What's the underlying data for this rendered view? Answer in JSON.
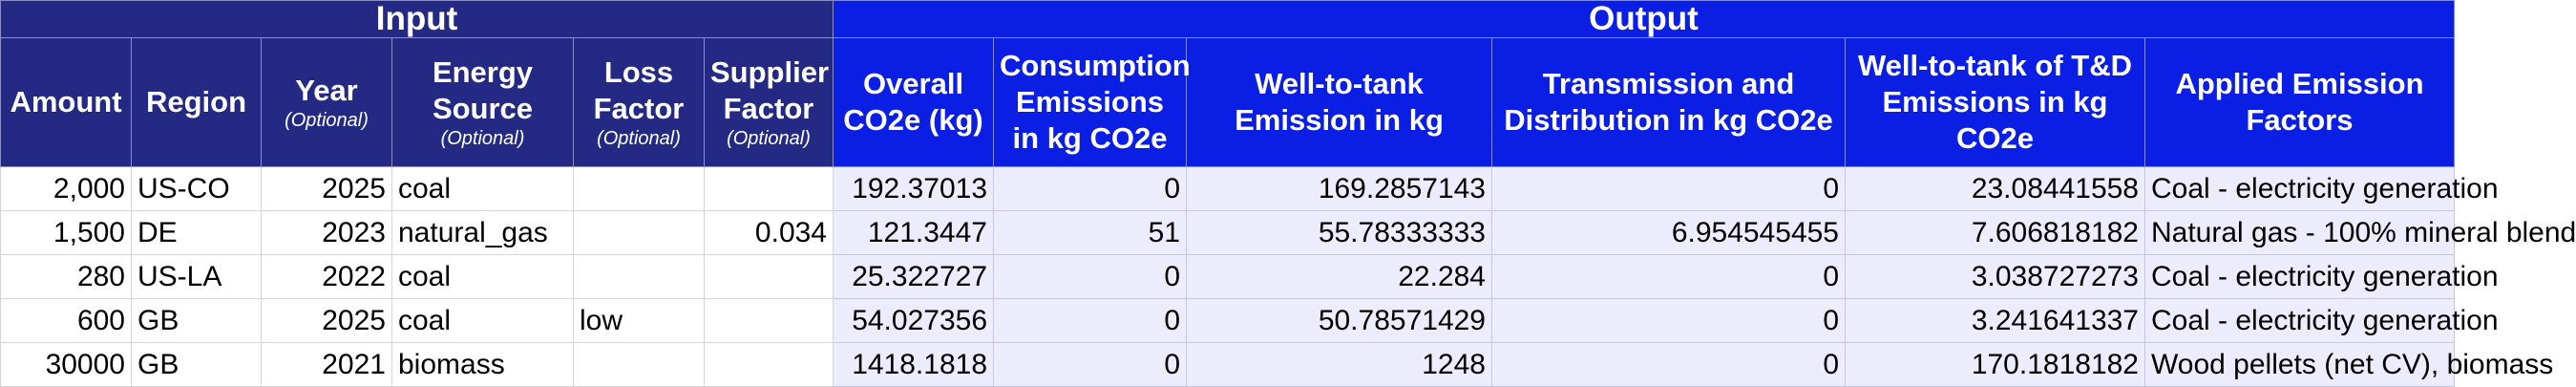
{
  "groups": {
    "input": "Input",
    "output": "Output"
  },
  "headers": {
    "amount": "Amount",
    "region": "Region",
    "year": "Year",
    "year_opt": "(Optional)",
    "energy_source": "Energy Source",
    "energy_source_opt": "(Optional)",
    "loss_factor": "Loss Factor",
    "loss_factor_opt": "(Optional)",
    "supplier_factor": "Supplier Factor",
    "supplier_factor_opt": "(Optional)",
    "overall": "Overall CO2e (kg)",
    "consumption": "Consumption Emissions in kg CO2e",
    "wtt": "Well-to-tank Emission in kg",
    "td": "Transmission and Distribution in kg CO2e",
    "wtt_td": "Well-to-tank of T&D Emissions in kg CO2e",
    "applied": "Applied Emission Factors"
  },
  "rows": [
    {
      "amount": "2,000",
      "region": "US-CO",
      "year": "2025",
      "energy_source": "coal",
      "loss_factor": "",
      "supplier_factor": "",
      "overall": "192.37013",
      "consumption": "0",
      "wtt": "169.2857143",
      "td": "0",
      "wtt_td": "23.08441558",
      "applied": "Coal - electricity generation"
    },
    {
      "amount": "1,500",
      "region": "DE",
      "year": "2023",
      "energy_source": "natural_gas",
      "loss_factor": "",
      "supplier_factor": "0.034",
      "overall": "121.3447",
      "consumption": "51",
      "wtt": "55.78333333",
      "td": "6.954545455",
      "wtt_td": "7.606818182",
      "applied": "Natural gas - 100% mineral blend"
    },
    {
      "amount": "280",
      "region": "US-LA",
      "year": "2022",
      "energy_source": "coal",
      "loss_factor": "",
      "supplier_factor": "",
      "overall": "25.322727",
      "consumption": "0",
      "wtt": "22.284",
      "td": "0",
      "wtt_td": "3.038727273",
      "applied": "Coal - electricity generation"
    },
    {
      "amount": "600",
      "region": "GB",
      "year": "2025",
      "energy_source": "coal",
      "loss_factor": "low",
      "supplier_factor": "",
      "overall": "54.027356",
      "consumption": "0",
      "wtt": "50.78571429",
      "td": "0",
      "wtt_td": "3.241641337",
      "applied": "Coal - electricity generation"
    },
    {
      "amount": "30000",
      "region": "GB",
      "year": "2021",
      "energy_source": "biomass",
      "loss_factor": "",
      "supplier_factor": "",
      "overall": "1418.1818",
      "consumption": "0",
      "wtt": "1248",
      "td": "0",
      "wtt_td": "170.1818182",
      "applied": "Wood pellets (net CV), biomass"
    }
  ]
}
